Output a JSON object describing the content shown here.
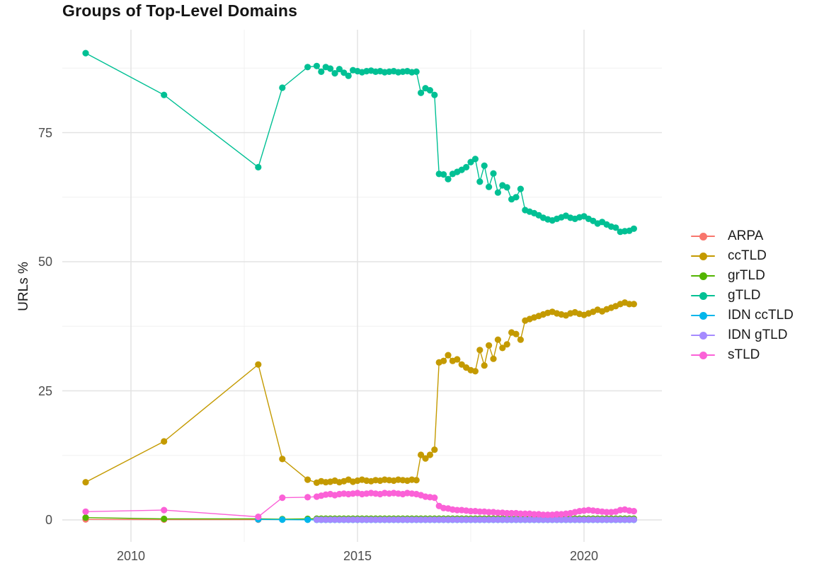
{
  "chart_data": {
    "type": "line",
    "title": "Groups of Top-Level Domains",
    "xlabel": "",
    "ylabel": "URLs %",
    "x_ticks": [
      2010,
      2015,
      2020
    ],
    "x_minor_ticks": [
      2012.5,
      2017.5
    ],
    "y_ticks": [
      0,
      25,
      50,
      75
    ],
    "y_minor_ticks": [
      12.5,
      37.5,
      62.5,
      87.5
    ],
    "xlim": [
      2008.5,
      2021.7
    ],
    "ylim": [
      -4.5,
      95
    ],
    "grid": true,
    "legend_position": "right",
    "marker": "point",
    "dense_x": {
      "start": 2014.1,
      "step": 0.1,
      "count": 71
    },
    "series": [
      {
        "name": "ARPA",
        "color": "#F8766D",
        "head_x": [
          2009.0,
          2010.73,
          2012.81
        ],
        "head_y": [
          0.1,
          0.07,
          0.05
        ]
      },
      {
        "name": "ccTLD",
        "color": "#C49A00",
        "head_x": [
          2009.0,
          2010.73,
          2012.81,
          2013.34,
          2013.9
        ],
        "head_y": [
          7.3,
          15.2,
          30.1,
          11.8,
          7.8
        ],
        "dense_y": [
          7.2,
          7.5,
          7.3,
          7.4,
          7.6,
          7.3,
          7.5,
          7.8,
          7.4,
          7.6,
          7.8,
          7.6,
          7.5,
          7.7,
          7.6,
          7.8,
          7.7,
          7.6,
          7.8,
          7.7,
          7.6,
          7.8,
          7.7,
          12.6,
          11.9,
          12.6,
          13.6,
          30.5,
          30.8,
          31.9,
          30.8,
          31.1,
          30.1,
          29.5,
          29.0,
          28.8,
          32.9,
          29.9,
          33.8,
          31.2,
          34.9,
          33.3,
          34.0,
          36.3,
          36.0,
          34.9,
          38.6,
          38.9,
          39.2,
          39.5,
          39.8,
          40.1,
          40.3,
          40.0,
          39.8,
          39.6,
          40.0,
          40.2,
          39.9,
          39.7,
          40.0,
          40.3,
          40.7,
          40.4,
          40.8,
          41.1,
          41.4,
          41.8,
          42.1,
          41.8,
          41.8
        ]
      },
      {
        "name": "grTLD",
        "color": "#53B400",
        "head_x": [
          2009.0,
          2010.73,
          2012.81,
          2013.34,
          2013.9
        ],
        "head_y": [
          0.45,
          0.2,
          0.2,
          0.15,
          0.2
        ],
        "dense_flat_y": 0.25
      },
      {
        "name": "gTLD",
        "color": "#00C094",
        "head_x": [
          2009.0,
          2010.73,
          2012.81,
          2013.34,
          2013.9
        ],
        "head_y": [
          90.4,
          82.3,
          68.3,
          83.7,
          87.7
        ],
        "dense_y": [
          87.9,
          86.8,
          87.7,
          87.4,
          86.5,
          87.3,
          86.6,
          86.0,
          87.1,
          86.9,
          86.7,
          86.9,
          87.0,
          86.8,
          86.9,
          86.7,
          86.8,
          86.9,
          86.7,
          86.8,
          86.9,
          86.7,
          86.8,
          82.7,
          83.6,
          83.2,
          82.3,
          67.0,
          66.9,
          66.0,
          67.0,
          67.4,
          67.8,
          68.3,
          69.3,
          69.9,
          65.5,
          68.6,
          64.5,
          67.1,
          63.4,
          64.8,
          64.4,
          62.1,
          62.5,
          64.1,
          60.0,
          59.7,
          59.4,
          59.0,
          58.5,
          58.2,
          58.0,
          58.3,
          58.6,
          58.9,
          58.5,
          58.3,
          58.6,
          58.8,
          58.3,
          57.9,
          57.4,
          57.7,
          57.2,
          56.8,
          56.6,
          55.8,
          55.9,
          56.0,
          56.4
        ]
      },
      {
        "name": "IDN ccTLD",
        "color": "#00B6EB",
        "head_x": [
          2012.81,
          2013.34,
          2013.9
        ],
        "head_y": [
          0.1,
          0.05,
          0.03
        ],
        "dense_flat_y": 0.02
      },
      {
        "name": "IDN gTLD",
        "color": "#A58AFF",
        "dense_flat_y": 0.05
      },
      {
        "name": "sTLD",
        "color": "#FB61D7",
        "head_x": [
          2009.0,
          2010.73,
          2012.81,
          2013.34,
          2013.9
        ],
        "head_y": [
          1.6,
          1.9,
          0.6,
          4.3,
          4.4
        ],
        "dense_y": [
          4.5,
          4.7,
          4.9,
          5.0,
          4.8,
          5.0,
          5.1,
          5.0,
          5.1,
          5.2,
          5.0,
          5.1,
          5.2,
          5.1,
          5.0,
          5.2,
          5.1,
          5.2,
          5.1,
          5.0,
          5.2,
          5.1,
          5.0,
          4.8,
          4.5,
          4.4,
          4.3,
          2.7,
          2.3,
          2.2,
          2.0,
          1.9,
          1.9,
          1.8,
          1.7,
          1.7,
          1.6,
          1.6,
          1.5,
          1.5,
          1.4,
          1.4,
          1.3,
          1.3,
          1.3,
          1.2,
          1.2,
          1.2,
          1.1,
          1.1,
          1.0,
          1.0,
          1.0,
          1.1,
          1.1,
          1.2,
          1.3,
          1.5,
          1.7,
          1.8,
          1.9,
          1.8,
          1.7,
          1.6,
          1.5,
          1.5,
          1.6,
          1.9,
          2.0,
          1.8,
          1.7
        ]
      }
    ],
    "colors": {
      "grid_major": "#e3e3e3",
      "grid_minor": "#f0f0f0",
      "tick_label": "#4d4d4d",
      "text": "#1a1a1a"
    }
  }
}
